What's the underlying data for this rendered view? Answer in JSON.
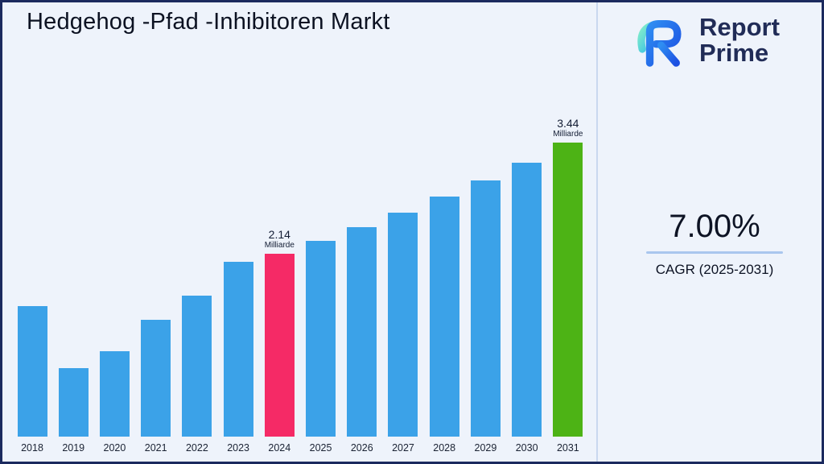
{
  "title": "Hedgehog -Pfad -Inhibitoren Markt",
  "brand": {
    "line1": "Report",
    "line2": "Prime"
  },
  "cagr": {
    "value": "7.00%",
    "label": "CAGR (2025-2031)"
  },
  "colors": {
    "background": "#eef3fb",
    "frame_border": "#1b2a5e",
    "divider": "#c9d8ef",
    "brand_text": "#212c57",
    "underline": "#a9c6ee"
  },
  "chart_data": {
    "type": "bar",
    "title": "Hedgehog -Pfad -Inhibitoren Markt",
    "xlabel": "",
    "ylabel": "",
    "unit": "Milliarde",
    "categories": [
      "2018",
      "2019",
      "2020",
      "2021",
      "2022",
      "2023",
      "2024",
      "2025",
      "2026",
      "2027",
      "2028",
      "2029",
      "2030",
      "2031"
    ],
    "values": [
      1.53,
      0.8,
      1.0,
      1.37,
      1.65,
      2.05,
      2.14,
      2.29,
      2.45,
      2.62,
      2.81,
      3.0,
      3.21,
      3.44
    ],
    "ylim": [
      0,
      3.8
    ],
    "grid": false,
    "legend": "none",
    "colors": {
      "default": "#3ba2e8",
      "2024": "#f52a66",
      "2031": "#4db315"
    },
    "annotations": [
      {
        "year": "2024",
        "value_label": "2.14",
        "unit_label": "Milliarde"
      },
      {
        "year": "2031",
        "value_label": "3.44",
        "unit_label": "Milliarde"
      }
    ]
  }
}
